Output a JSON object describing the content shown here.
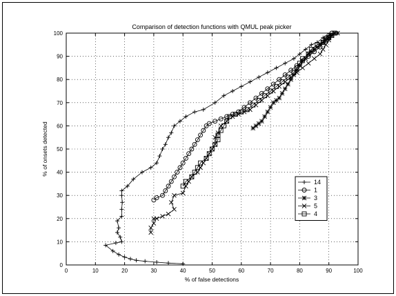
{
  "chart_data": {
    "type": "line",
    "title": "Comparison of detection functions with QMUL peak picker",
    "xlabel": "% of false detections",
    "ylabel": "% of onsets detected",
    "xlim": [
      0,
      100
    ],
    "ylim": [
      0,
      100
    ],
    "xticks": [
      "0",
      "10",
      "20",
      "30",
      "40",
      "50",
      "60",
      "70",
      "80",
      "90",
      "100"
    ],
    "yticks": [
      "0",
      "10",
      "20",
      "30",
      "40",
      "50",
      "60",
      "70",
      "80",
      "90",
      "100"
    ],
    "grid": true,
    "legend_position": "right",
    "series": [
      {
        "name": "14",
        "marker": "plus",
        "points": [
          [
            40,
            0.5
          ],
          [
            35,
            0.8
          ],
          [
            31,
            1.2
          ],
          [
            27,
            1.6
          ],
          [
            24,
            2.0
          ],
          [
            22,
            2.6
          ],
          [
            20,
            3.4
          ],
          [
            18,
            4.5
          ],
          [
            16,
            6
          ],
          [
            13.5,
            8.5
          ],
          [
            17,
            9.5
          ],
          [
            19,
            10
          ],
          [
            18.5,
            12
          ],
          [
            17.5,
            14
          ],
          [
            18,
            16
          ],
          [
            17.5,
            19
          ],
          [
            19,
            21
          ],
          [
            19,
            24
          ],
          [
            19.2,
            27
          ],
          [
            19,
            30
          ],
          [
            19,
            32
          ],
          [
            21,
            34
          ],
          [
            23,
            37
          ],
          [
            26,
            40
          ],
          [
            29,
            42
          ],
          [
            31,
            44
          ],
          [
            32,
            47
          ],
          [
            33,
            50
          ],
          [
            34,
            52
          ],
          [
            35,
            55
          ],
          [
            36,
            57
          ],
          [
            37,
            60
          ],
          [
            39,
            62
          ],
          [
            41,
            64
          ],
          [
            44,
            66
          ],
          [
            47,
            67
          ],
          [
            51,
            70
          ],
          [
            54,
            73
          ],
          [
            57,
            75
          ],
          [
            60,
            77
          ],
          [
            63,
            79
          ],
          [
            66,
            81
          ],
          [
            69,
            83
          ],
          [
            72,
            85
          ],
          [
            75,
            87
          ],
          [
            78,
            89
          ],
          [
            80,
            91
          ],
          [
            82,
            93
          ],
          [
            84,
            95
          ],
          [
            86,
            96
          ],
          [
            88,
            98
          ],
          [
            90,
            99
          ],
          [
            92,
            100
          ]
        ]
      },
      {
        "name": "1",
        "marker": "circle",
        "points": [
          [
            30,
            28
          ],
          [
            31,
            29
          ],
          [
            33,
            30
          ],
          [
            34,
            32
          ],
          [
            35,
            34
          ],
          [
            36,
            36
          ],
          [
            37,
            38
          ],
          [
            38,
            40
          ],
          [
            39,
            42
          ],
          [
            40,
            44
          ],
          [
            41,
            46
          ],
          [
            42,
            48
          ],
          [
            43,
            50
          ],
          [
            44,
            52
          ],
          [
            45,
            54
          ],
          [
            46,
            56
          ],
          [
            47,
            58
          ],
          [
            48,
            60
          ],
          [
            49,
            61
          ],
          [
            51,
            62
          ],
          [
            53,
            63
          ],
          [
            55,
            64
          ],
          [
            57,
            65
          ],
          [
            59,
            66
          ],
          [
            61,
            68
          ],
          [
            63,
            70
          ],
          [
            65,
            72
          ],
          [
            67,
            74
          ],
          [
            69,
            76
          ],
          [
            71,
            78
          ],
          [
            73,
            80
          ],
          [
            75,
            82
          ],
          [
            77,
            84
          ],
          [
            79,
            86
          ],
          [
            81,
            88
          ],
          [
            83,
            90
          ],
          [
            85,
            92
          ],
          [
            87,
            94
          ],
          [
            88,
            96
          ],
          [
            89,
            98
          ],
          [
            90,
            99
          ],
          [
            91,
            100
          ]
        ]
      },
      {
        "name": "3",
        "marker": "star",
        "points": [
          [
            64,
            59
          ],
          [
            65,
            60
          ],
          [
            66,
            61
          ],
          [
            67,
            62
          ],
          [
            68,
            64
          ],
          [
            69,
            66
          ],
          [
            70,
            68
          ],
          [
            71,
            70
          ],
          [
            72,
            71
          ],
          [
            73,
            72
          ],
          [
            74,
            74
          ],
          [
            75,
            76
          ],
          [
            76,
            78
          ],
          [
            77,
            80
          ],
          [
            78,
            82
          ],
          [
            79,
            84
          ],
          [
            80,
            86
          ],
          [
            81,
            88
          ],
          [
            82,
            89
          ],
          [
            83,
            91
          ],
          [
            84,
            92
          ],
          [
            85,
            93
          ],
          [
            86,
            94
          ],
          [
            87,
            95
          ],
          [
            88,
            96
          ],
          [
            89,
            97
          ],
          [
            90,
            98
          ],
          [
            91,
            99
          ],
          [
            92,
            100
          ],
          [
            93,
            100
          ]
        ]
      },
      {
        "name": "5",
        "marker": "x",
        "points": [
          [
            29,
            14
          ],
          [
            29,
            16
          ],
          [
            30,
            18
          ],
          [
            30,
            20
          ],
          [
            31,
            20
          ],
          [
            33,
            21
          ],
          [
            35,
            22
          ],
          [
            37,
            24
          ],
          [
            36,
            27
          ],
          [
            37,
            30
          ],
          [
            40,
            31
          ],
          [
            41,
            34
          ],
          [
            42,
            36
          ],
          [
            43,
            38
          ],
          [
            45,
            40
          ],
          [
            46,
            42
          ],
          [
            47,
            44
          ],
          [
            48,
            46
          ],
          [
            49,
            48
          ],
          [
            50,
            50
          ],
          [
            51,
            52
          ],
          [
            51,
            55
          ],
          [
            52,
            57
          ],
          [
            53,
            60
          ],
          [
            55,
            62
          ],
          [
            57,
            64
          ],
          [
            59,
            65
          ],
          [
            61,
            66
          ],
          [
            63,
            67
          ],
          [
            65,
            69
          ],
          [
            67,
            71
          ],
          [
            69,
            73
          ],
          [
            71,
            75
          ],
          [
            73,
            77
          ],
          [
            75,
            79
          ],
          [
            77,
            81
          ],
          [
            79,
            83
          ],
          [
            81,
            85
          ],
          [
            83,
            87
          ],
          [
            85,
            89
          ],
          [
            87,
            91
          ],
          [
            88,
            93
          ],
          [
            89,
            95
          ],
          [
            90,
            97
          ],
          [
            91,
            99
          ],
          [
            92,
            100
          ]
        ]
      },
      {
        "name": "4",
        "marker": "square",
        "points": [
          [
            40,
            34
          ],
          [
            41,
            36
          ],
          [
            43,
            38
          ],
          [
            44,
            40
          ],
          [
            45,
            42
          ],
          [
            46,
            44
          ],
          [
            48,
            46
          ],
          [
            49,
            48
          ],
          [
            50,
            50
          ],
          [
            51,
            52
          ],
          [
            52,
            54
          ],
          [
            52,
            56
          ],
          [
            53,
            58
          ],
          [
            54,
            60
          ],
          [
            55,
            62
          ],
          [
            56,
            64
          ],
          [
            58,
            65
          ],
          [
            60,
            66
          ],
          [
            62,
            67
          ],
          [
            64,
            69
          ],
          [
            66,
            71
          ],
          [
            68,
            73
          ],
          [
            70,
            75
          ],
          [
            72,
            77
          ],
          [
            74,
            79
          ],
          [
            76,
            81
          ],
          [
            78,
            83
          ],
          [
            79,
            85
          ],
          [
            80,
            87
          ],
          [
            81,
            89
          ],
          [
            83,
            91
          ],
          [
            84,
            93
          ],
          [
            86,
            95
          ],
          [
            88,
            96
          ],
          [
            89,
            97
          ],
          [
            90,
            98
          ],
          [
            91,
            99
          ],
          [
            92,
            100
          ]
        ]
      }
    ]
  }
}
